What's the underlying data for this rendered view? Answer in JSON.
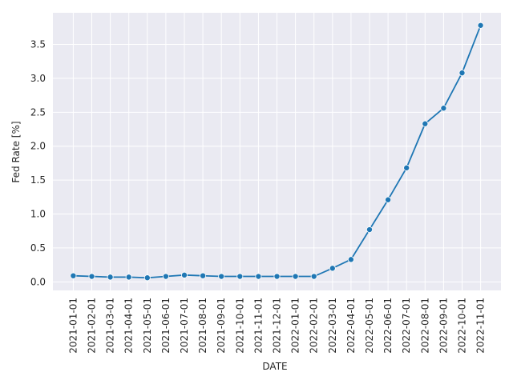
{
  "chart_data": {
    "type": "line",
    "x_label": "DATE",
    "y_label": "Fed Rate [%]",
    "x": [
      "2021-01-01",
      "2021-02-01",
      "2021-03-01",
      "2021-04-01",
      "2021-05-01",
      "2021-06-01",
      "2021-07-01",
      "2021-08-01",
      "2021-09-01",
      "2021-10-01",
      "2021-11-01",
      "2021-12-01",
      "2022-01-01",
      "2022-02-01",
      "2022-03-01",
      "2022-04-01",
      "2022-05-01",
      "2022-06-01",
      "2022-07-01",
      "2022-08-01",
      "2022-09-01",
      "2022-10-01",
      "2022-11-01"
    ],
    "series": [
      {
        "color": "#1f77b4",
        "values": [
          0.09,
          0.08,
          0.07,
          0.07,
          0.06,
          0.08,
          0.1,
          0.09,
          0.08,
          0.08,
          0.08,
          0.08,
          0.08,
          0.08,
          0.2,
          0.33,
          0.77,
          1.21,
          1.68,
          2.33,
          2.56,
          3.08,
          3.78
        ]
      }
    ],
    "ylim": [
      -0.126,
      3.966
    ],
    "yticks": [
      {
        "value": 0,
        "label": "0.0"
      },
      0.5,
      {
        "value": 1,
        "label": "1.0"
      },
      1.5,
      {
        "value": 2,
        "label": "2.0"
      },
      2.5,
      {
        "value": 3,
        "label": "3.0"
      },
      3.5
    ],
    "grid": true,
    "background": "#eaeaf2"
  }
}
